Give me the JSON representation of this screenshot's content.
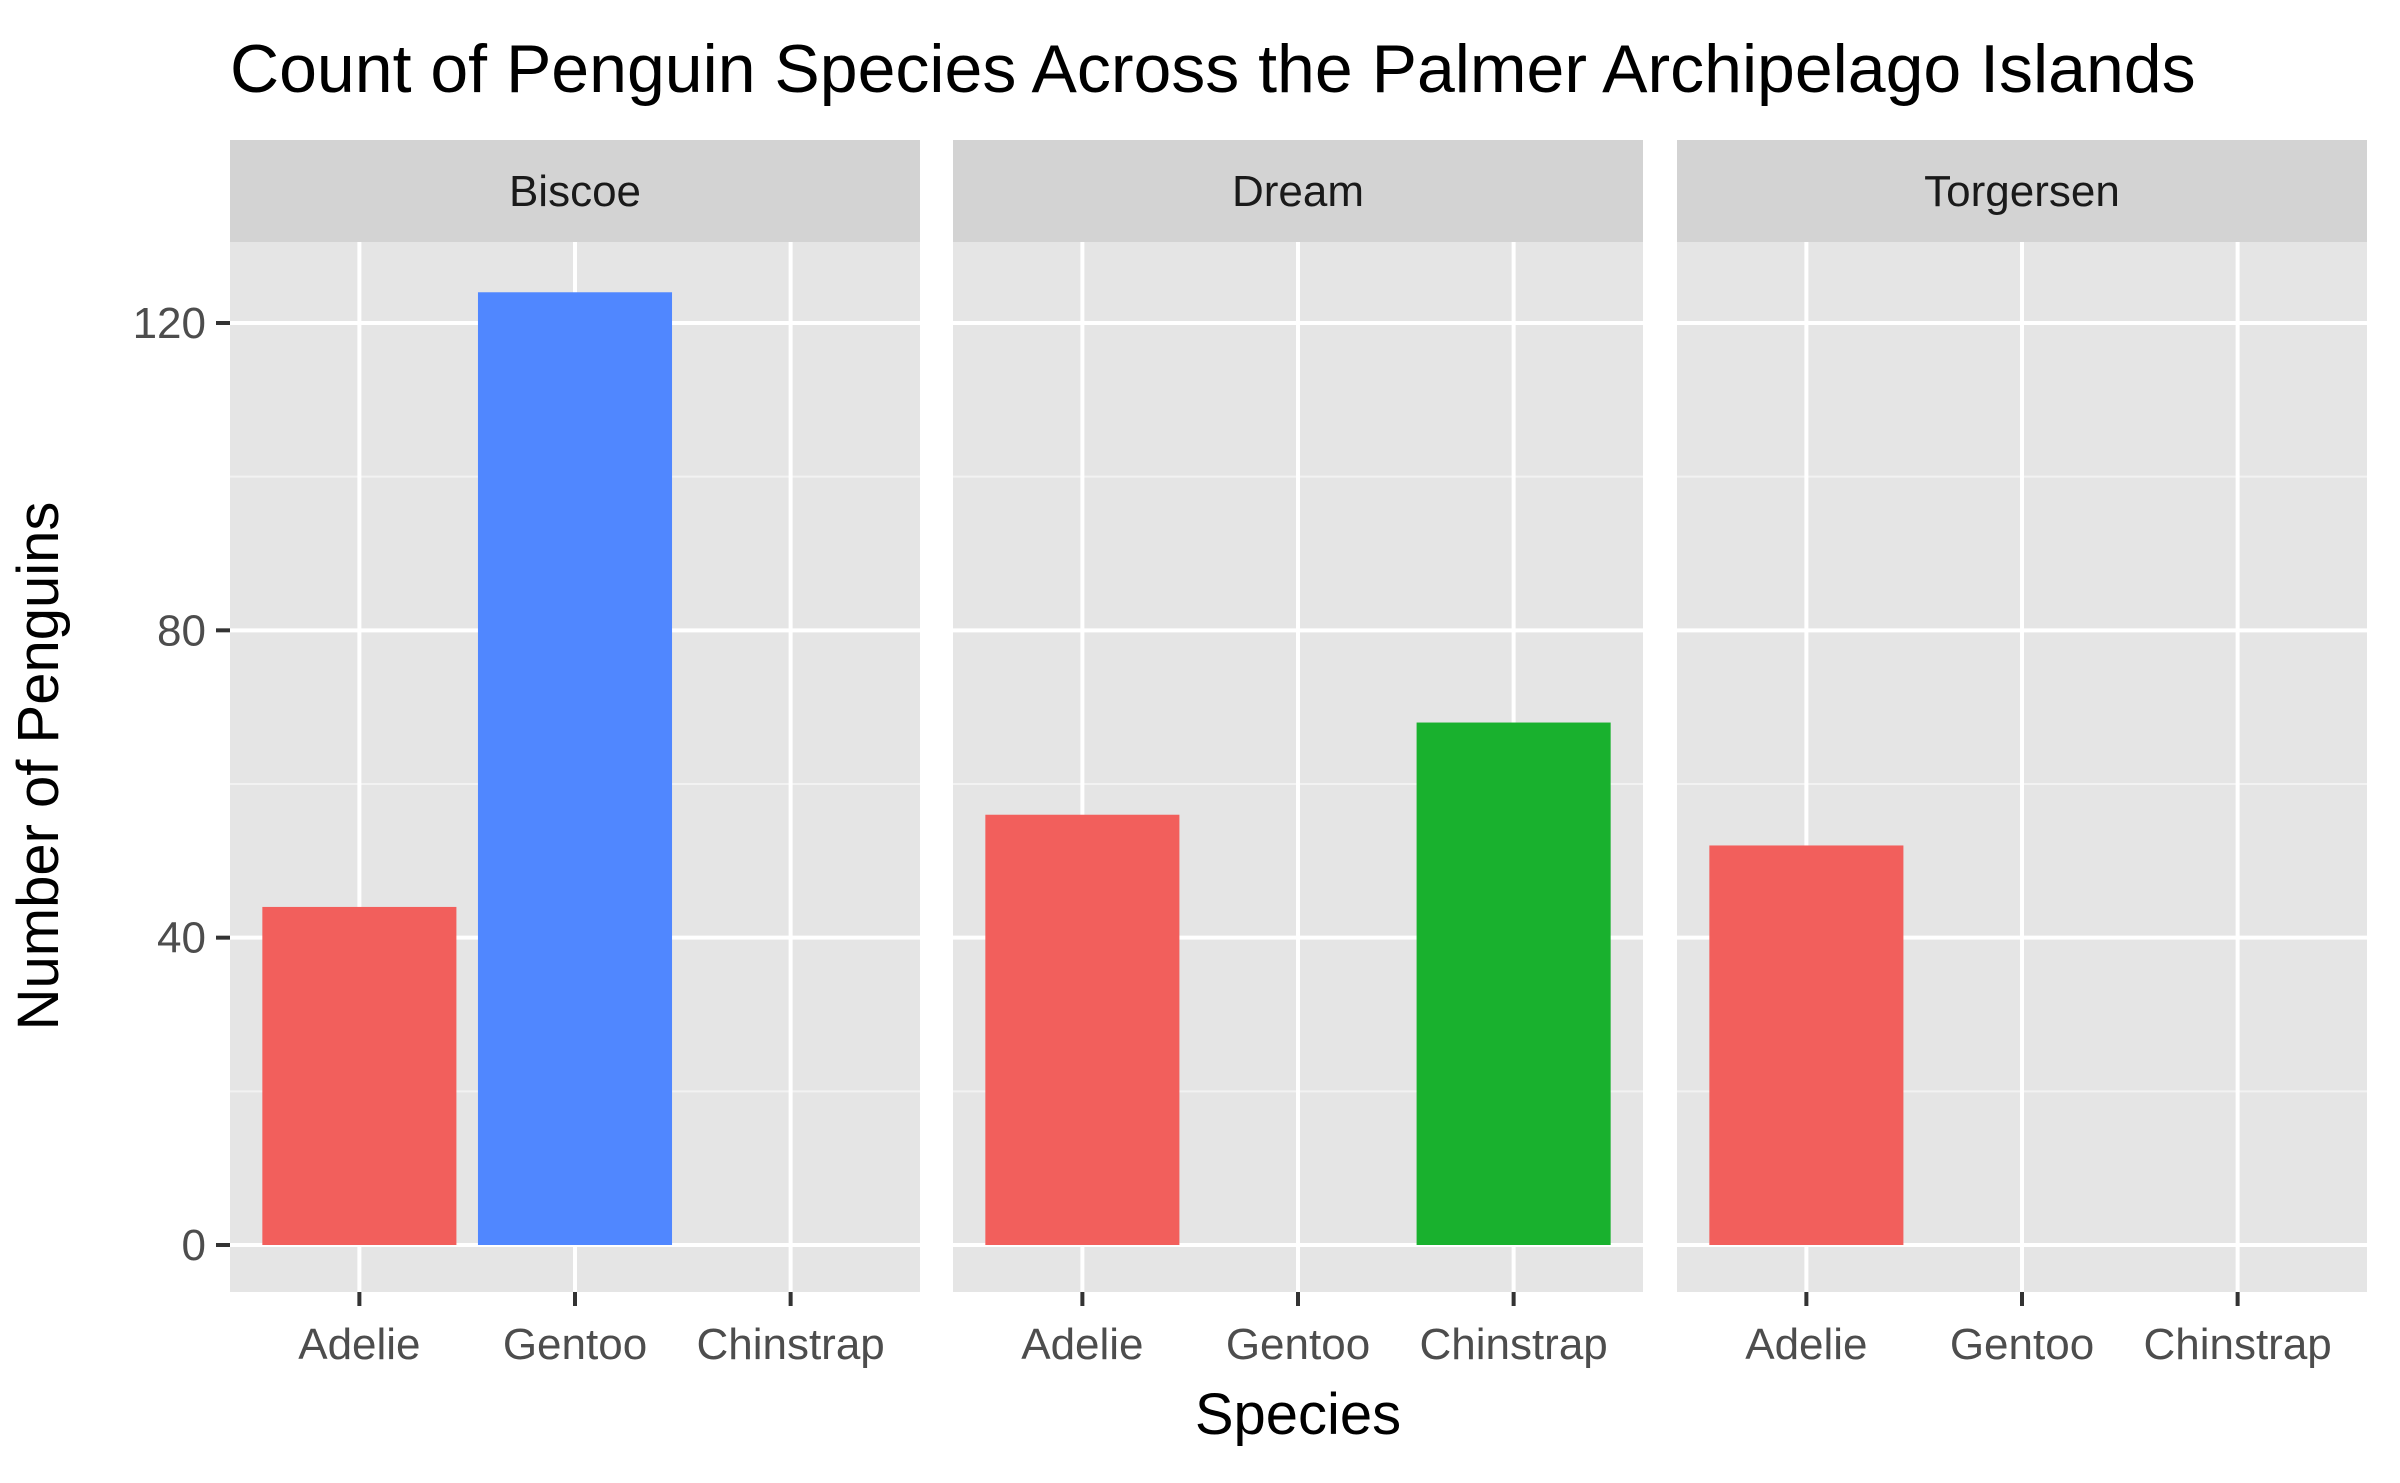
{
  "chart_data": {
    "type": "bar",
    "title": "Count of Penguin Species Across the Palmer Archipelago Islands",
    "xlabel": "Species",
    "ylabel": "Number of Penguins",
    "categories": [
      "Adelie",
      "Gentoo",
      "Chinstrap"
    ],
    "ylim": [
      -7,
      140
    ],
    "yticks": [
      0,
      40,
      80,
      120
    ],
    "grid": true,
    "legend": "none",
    "colors": {
      "Adelie": "#F25F5C",
      "Gentoo": "#5087FF",
      "Chinstrap": "#19B12E"
    },
    "facets": [
      {
        "name": "Biscoe",
        "values": [
          44,
          124,
          0
        ]
      },
      {
        "name": "Dream",
        "values": [
          56,
          0,
          68
        ]
      },
      {
        "name": "Torgersen",
        "values": [
          52,
          0,
          0
        ]
      }
    ]
  }
}
